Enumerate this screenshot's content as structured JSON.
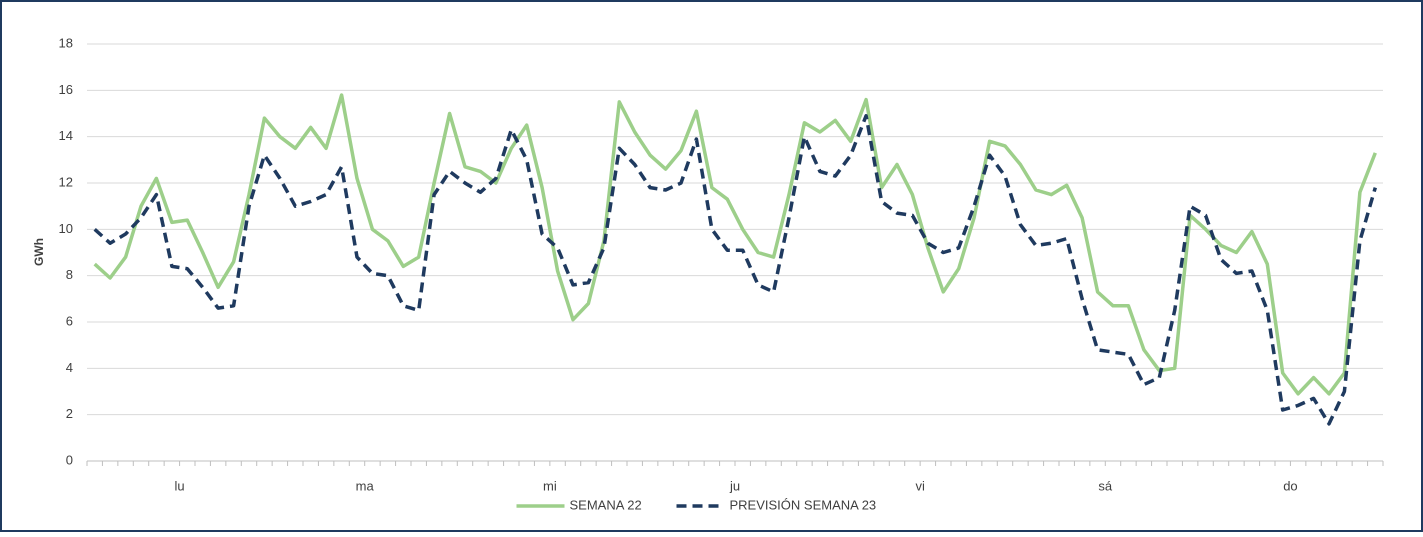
{
  "chart_data": {
    "type": "line",
    "y_label": "GWh",
    "categories": [
      null,
      null,
      null,
      null,
      null,
      "lu",
      null,
      null,
      null,
      null,
      null,
      null,
      null,
      null,
      null,
      null,
      null,
      "ma",
      null,
      null,
      null,
      null,
      null,
      null,
      null,
      null,
      null,
      null,
      null,
      "mi",
      null,
      null,
      null,
      null,
      null,
      null,
      null,
      null,
      null,
      null,
      null,
      "ju",
      null,
      null,
      null,
      null,
      null,
      null,
      null,
      null,
      null,
      null,
      null,
      "vi",
      null,
      null,
      null,
      null,
      null,
      null,
      null,
      null,
      null,
      null,
      null,
      "sá",
      null,
      null,
      null,
      null,
      null,
      null,
      null,
      null,
      null,
      null,
      null,
      "do",
      null,
      null,
      null,
      null,
      null,
      null
    ],
    "series": [
      {
        "name": "SEMANA 22",
        "color": "#9dcf8a",
        "dash": false,
        "values": [
          8.5,
          7.9,
          8.8,
          11,
          12.2,
          10.3,
          10.4,
          9.0,
          7.5,
          8.6,
          11.5,
          14.8,
          14,
          13.5,
          14.4,
          13.5,
          15.8,
          12.2,
          10,
          9.5,
          8.4,
          8.8,
          12,
          15,
          12.7,
          12.5,
          12,
          13.5,
          14.5,
          11.8,
          8.2,
          6.1,
          6.8,
          9.5,
          15.5,
          14.2,
          13.2,
          12.6,
          13.4,
          15.1,
          11.8,
          11.3,
          10,
          9,
          8.8,
          11.5,
          14.6,
          14.2,
          14.7,
          13.8,
          15.6,
          11.8,
          12.8,
          11.5,
          9.2,
          7.3,
          8.3,
          10.5,
          13.8,
          13.6,
          12.8,
          11.7,
          11.5,
          11.9,
          10.5,
          7.3,
          6.7,
          6.7,
          4.8,
          3.9,
          4.0,
          10.6,
          10.0,
          9.3,
          9.0,
          9.9,
          8.5,
          3.8,
          2.9,
          3.6,
          2.9,
          3.8,
          11.6,
          13.3
        ]
      },
      {
        "name": "PREVISIÓN SEMANA 23",
        "color": "#1f3a5f",
        "dash": true,
        "values": [
          10,
          9.4,
          9.8,
          10.5,
          11.5,
          8.4,
          8.3,
          7.5,
          6.6,
          6.7,
          11,
          13.2,
          12.2,
          11,
          11.2,
          11.5,
          12.7,
          8.8,
          8.1,
          8.0,
          6.7,
          6.5,
          11.5,
          12.5,
          12,
          11.6,
          12.2,
          14.3,
          13,
          9.8,
          9.2,
          7.6,
          7.7,
          9.2,
          13.5,
          12.8,
          11.8,
          11.7,
          12,
          13.9,
          10,
          9.1,
          9.1,
          7.6,
          7.3,
          10.5,
          14.0,
          12.5,
          12.3,
          13.2,
          14.9,
          11.2,
          10.7,
          10.6,
          9.4,
          9.0,
          9.2,
          11,
          13.2,
          12.3,
          10.2,
          9.3,
          9.4,
          9.6,
          7,
          4.8,
          4.7,
          4.6,
          3.3,
          3.6,
          6.5,
          11.0,
          10.6,
          8.7,
          8.1,
          8.2,
          6.5,
          2.2,
          2.4,
          2.7,
          1.6,
          3,
          9.5,
          11.8
        ]
      }
    ],
    "ylim": [
      0,
      18
    ],
    "yticks": [
      0,
      2,
      4,
      6,
      8,
      10,
      12,
      14,
      16,
      18
    ],
    "grid": true,
    "legend": "bottom"
  }
}
